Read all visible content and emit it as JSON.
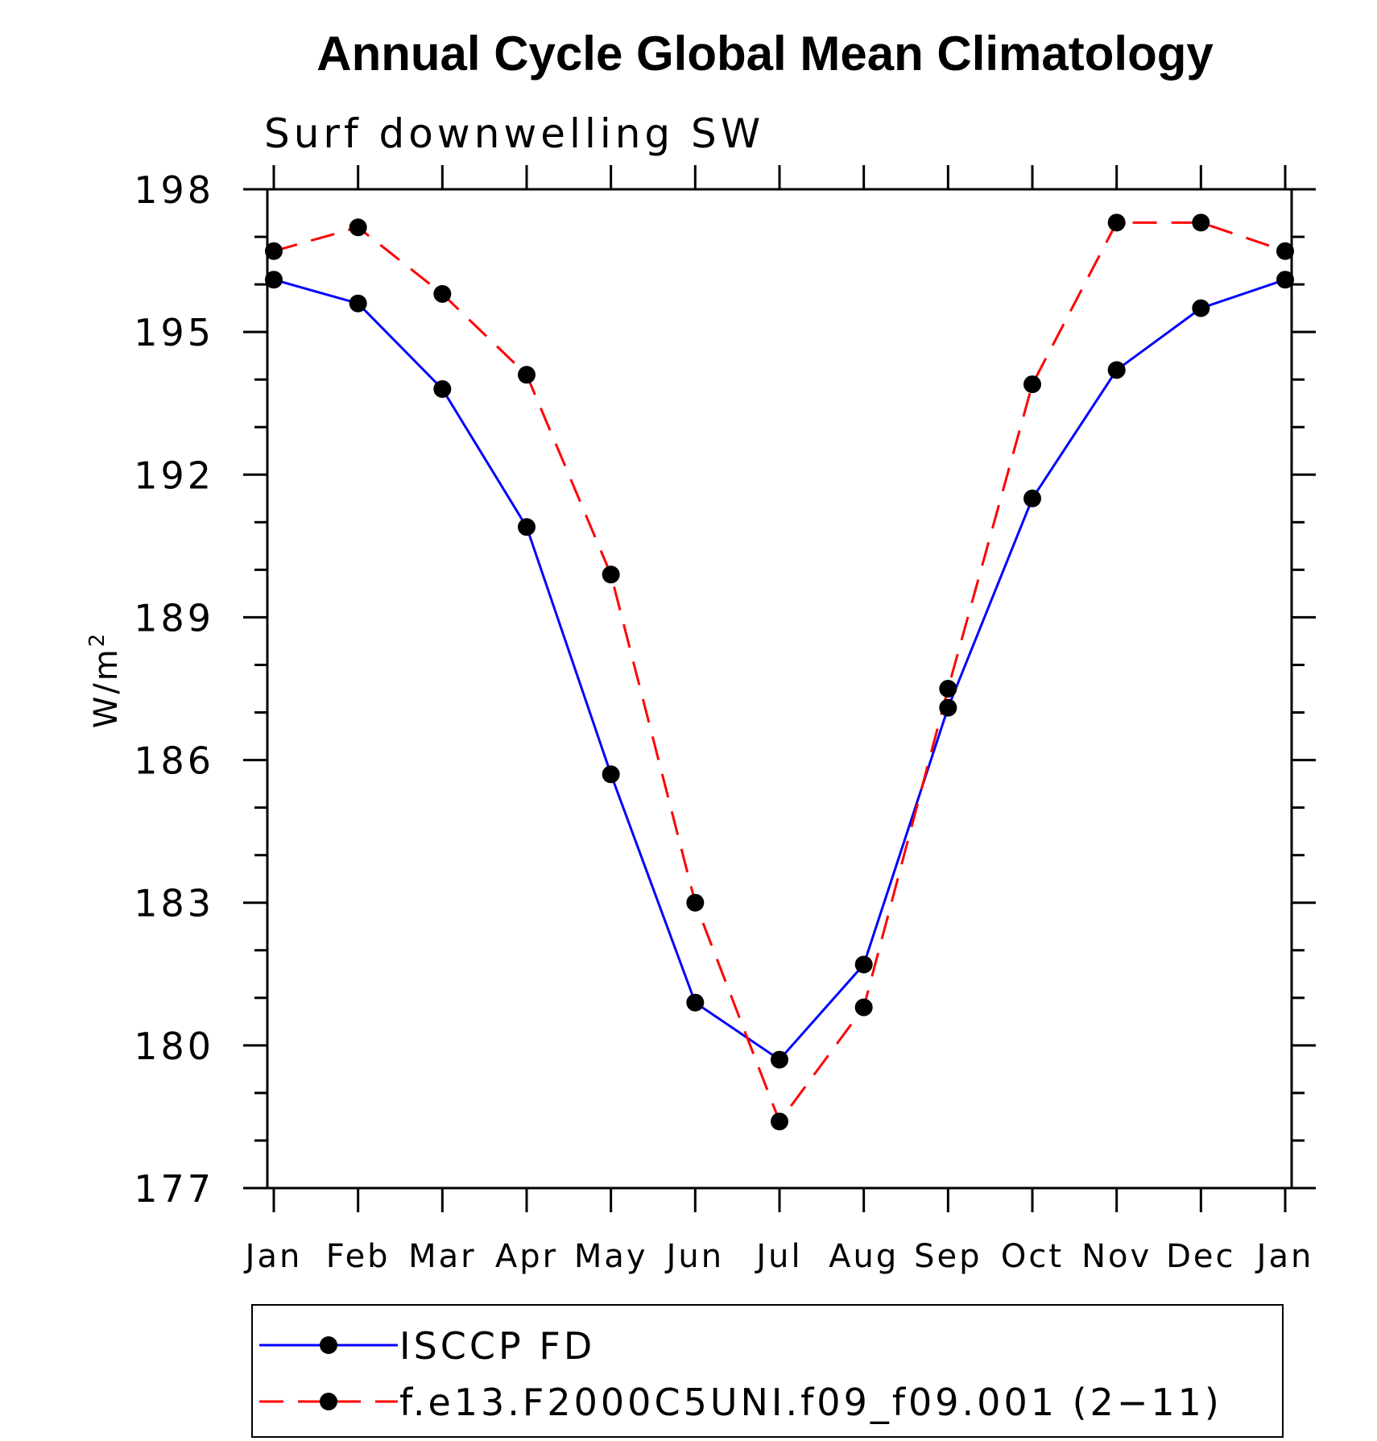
{
  "chart_data": {
    "type": "line",
    "title": "Annual Cycle Global Mean Climatology",
    "subtitle": "Surf downwelling SW",
    "ylabel": "W/m",
    "ylabel_superscript": "2",
    "ylim": [
      177,
      198
    ],
    "yticks": [
      177,
      180,
      183,
      186,
      189,
      192,
      195,
      198
    ],
    "y_minor_step": 1,
    "categories": [
      "Jan",
      "Feb",
      "Mar",
      "Apr",
      "May",
      "Jun",
      "Jul",
      "Aug",
      "Sep",
      "Oct",
      "Nov",
      "Dec",
      "Jan"
    ],
    "grid": false,
    "legend_position": "bottom",
    "series": [
      {
        "name": "ISCCP FD",
        "color": "#0000ff",
        "dash": "solid",
        "marker": "filled-circle",
        "values": [
          196.1,
          195.6,
          193.8,
          190.9,
          185.7,
          180.9,
          179.7,
          181.7,
          187.1,
          191.5,
          194.2,
          195.5,
          196.1
        ]
      },
      {
        "name": "f.e13.F2000C5UNI.f09_f09.001 (2−11)",
        "color": "#ff0000",
        "dash": "dashed",
        "marker": "filled-circle",
        "values": [
          196.7,
          197.2,
          195.8,
          194.1,
          189.9,
          183.0,
          178.4,
          180.8,
          187.5,
          193.9,
          197.3,
          197.3,
          196.7
        ]
      }
    ]
  }
}
